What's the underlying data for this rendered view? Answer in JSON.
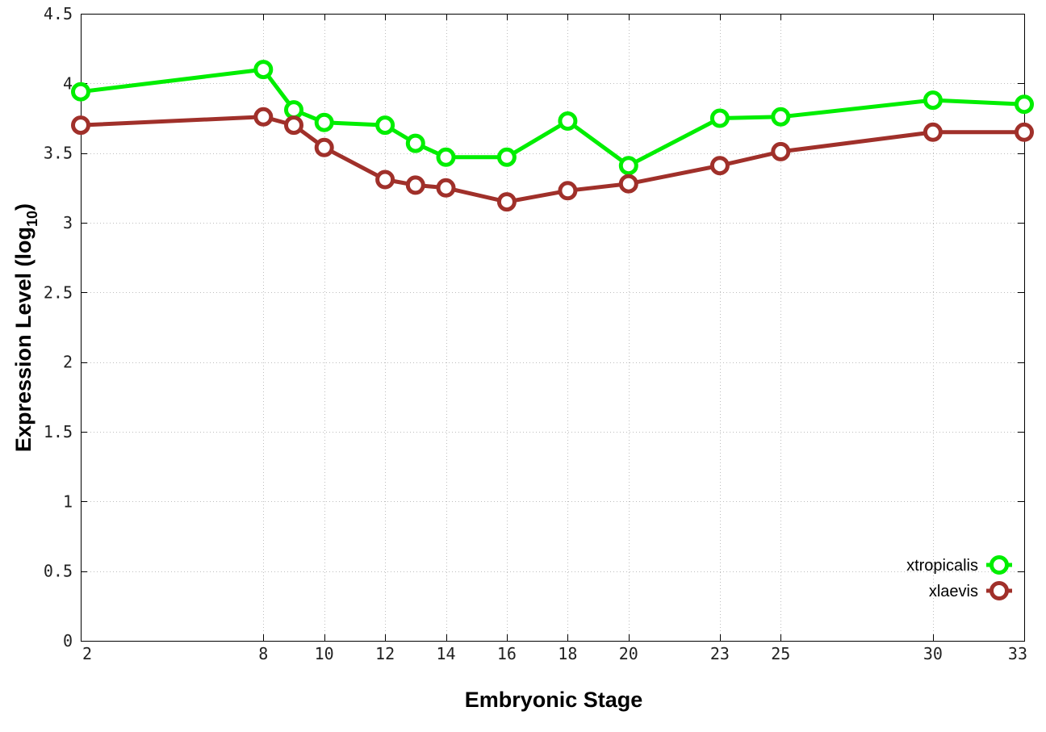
{
  "chart_data": {
    "type": "line",
    "xlabel": "Embryonic Stage",
    "ylabel_main": "Expression Level (log",
    "ylabel_sub": "10",
    "ylabel_close": ")",
    "xlim": [
      2,
      33
    ],
    "ylim": [
      0,
      4.5
    ],
    "x_ticks": [
      2,
      8,
      10,
      12,
      14,
      16,
      18,
      20,
      23,
      25,
      30,
      33
    ],
    "y_ticks": [
      0,
      0.5,
      1,
      1.5,
      2,
      2.5,
      3,
      3.5,
      4,
      4.5
    ],
    "y_tick_labels": [
      "0",
      "0.5",
      "1",
      "1.5",
      "2",
      "2.5",
      "3",
      "3.5",
      "4",
      "4.5"
    ],
    "grid": true,
    "legend_position": "bottom-right",
    "x": [
      2,
      8,
      9,
      10,
      12,
      13,
      14,
      16,
      18,
      20,
      23,
      25,
      30,
      33
    ],
    "series": [
      {
        "name": "xtropicalis",
        "color": "#00ee00",
        "values": [
          3.94,
          4.1,
          3.81,
          3.72,
          3.7,
          3.57,
          3.47,
          3.47,
          3.73,
          3.41,
          3.75,
          3.76,
          3.88,
          3.85
        ]
      },
      {
        "name": "xlaevis",
        "color": "#a0302a",
        "values": [
          3.7,
          3.76,
          3.7,
          3.54,
          3.31,
          3.27,
          3.25,
          3.15,
          3.23,
          3.28,
          3.41,
          3.51,
          3.65,
          3.65
        ]
      }
    ]
  }
}
